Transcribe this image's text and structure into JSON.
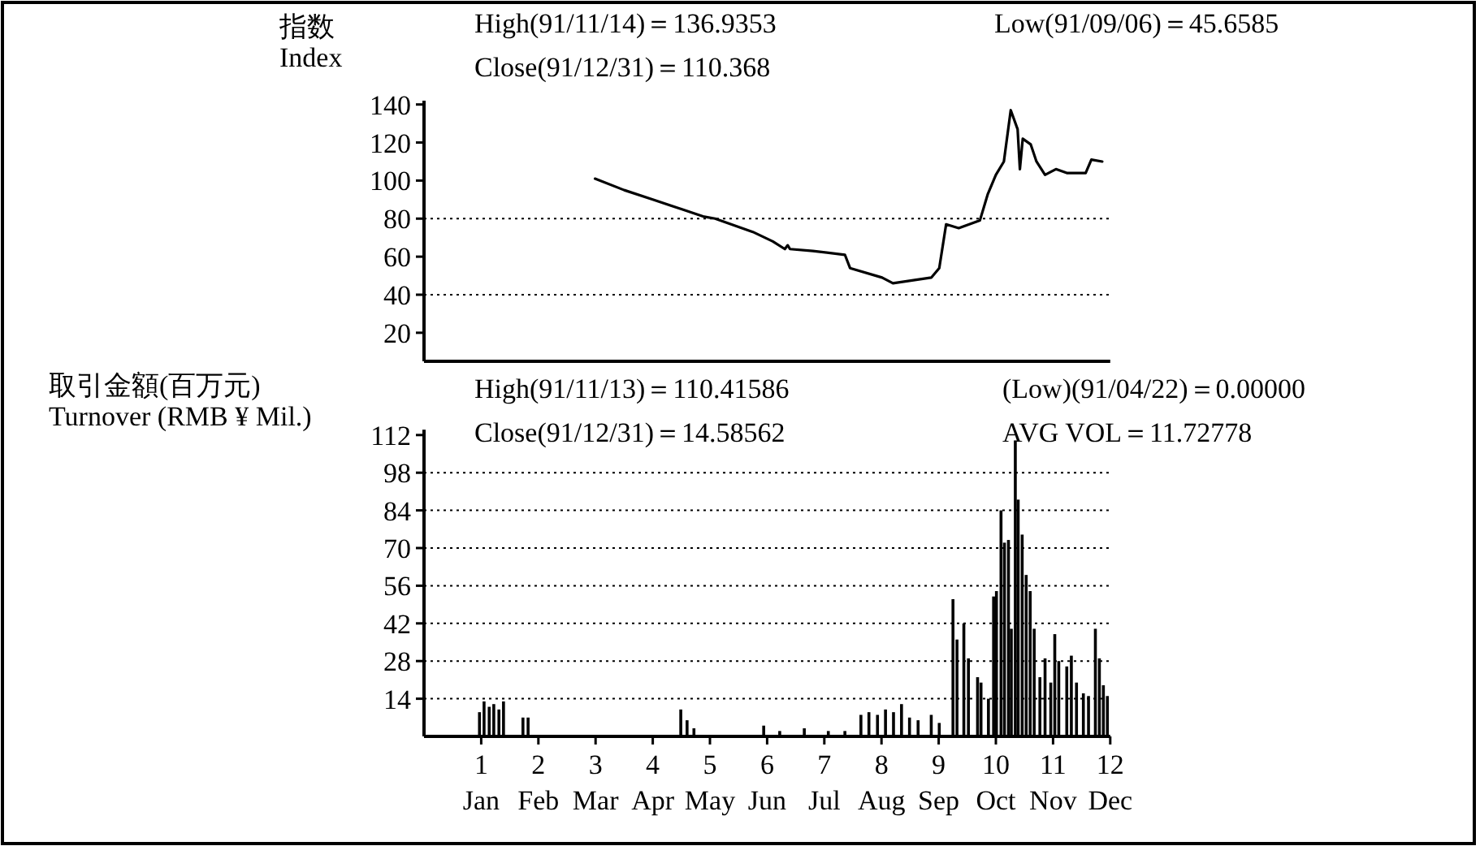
{
  "chart_data": [
    {
      "type": "line",
      "ylabel": "指数\nIndex",
      "annotations": [
        "High(91/11/14)＝136.9353",
        "Close(91/12/31)＝110.368",
        "Low(91/09/06)＝45.6585"
      ],
      "color": "#000000",
      "x": [
        2.99,
        3.5,
        4.0,
        4.5,
        4.9,
        5.09,
        5.65,
        5.75,
        6.1,
        6.31,
        6.36,
        6.4,
        6.8,
        7.36,
        7.45,
        8.01,
        8.2,
        8.87,
        9.01,
        9.13,
        9.35,
        9.72,
        9.86,
        10.0,
        10.14,
        10.26,
        10.38,
        10.42,
        10.47,
        10.61,
        10.71,
        10.86,
        11.05,
        11.24,
        11.57,
        11.67,
        11.86
      ],
      "values": [
        101,
        95,
        90,
        85,
        81,
        80,
        74,
        73,
        68,
        64,
        66,
        64,
        63,
        61,
        54,
        49,
        46,
        49,
        54,
        77,
        75,
        79,
        93,
        103,
        110,
        137,
        127,
        106,
        122,
        119,
        110,
        103,
        106,
        104,
        104,
        111,
        110
      ],
      "xlim": [
        0,
        12
      ],
      "ylim": [
        5,
        142
      ],
      "yticks": [
        20,
        40,
        60,
        80,
        100,
        120,
        140
      ],
      "tick_labels": "y",
      "ref_lines": [
        {
          "axis": "y",
          "value": 40,
          "line_style": "dotted"
        },
        {
          "axis": "y",
          "value": 80,
          "line_style": "dotted"
        }
      ]
    },
    {
      "type": "bar",
      "ylabel": "取引金額(百万元)\nTurnover (RMB ¥ Mil.)",
      "annotations": [
        "High(91/11/13)＝110.41586",
        "Close(91/12/31)＝14.58562",
        "(Low)(91/04/22)＝0.00000",
        "AVG VOL＝11.72778",
        "Jan",
        "Feb",
        "Mar",
        "Apr",
        "May",
        "Jun",
        "Jul",
        "Aug",
        "Sep",
        "Oct",
        "Nov",
        "Dec"
      ],
      "color": "#000000",
      "x": [
        0.97,
        1.05,
        1.14,
        1.22,
        1.31,
        1.39,
        1.73,
        1.82,
        4.49,
        4.6,
        4.72,
        5.94,
        6.22,
        6.65,
        7.07,
        7.36,
        7.64,
        7.78,
        7.93,
        8.07,
        8.21,
        8.35,
        8.49,
        8.64,
        8.87,
        9.01,
        9.25,
        9.32,
        9.44,
        9.52,
        9.68,
        9.74,
        9.87,
        9.96,
        10.01,
        10.09,
        10.15,
        10.22,
        10.27,
        10.34,
        10.39,
        10.46,
        10.53,
        10.6,
        10.67,
        10.77,
        10.86,
        10.96,
        11.03,
        11.1,
        11.24,
        11.32,
        11.41,
        11.53,
        11.62,
        11.74,
        11.81,
        11.88,
        11.95
      ],
      "values": [
        9,
        13,
        11,
        12,
        10,
        13,
        7,
        7,
        10,
        6,
        3,
        4,
        2,
        3,
        2,
        2,
        8,
        9,
        8,
        10,
        9,
        12,
        7,
        6,
        8,
        5,
        51,
        36,
        42,
        29,
        22,
        20,
        14,
        52,
        54,
        84,
        72,
        73,
        40,
        110,
        88,
        75,
        60,
        54,
        40,
        22,
        29,
        20,
        38,
        28,
        26,
        30,
        20,
        16,
        15,
        40,
        29,
        19,
        15
      ],
      "xlim": [
        0,
        12
      ],
      "ylim": [
        0,
        114
      ],
      "yticks": [
        14,
        28,
        42,
        56,
        70,
        84,
        98,
        112
      ],
      "xticks": [
        1,
        2,
        3,
        4,
        5,
        6,
        7,
        8,
        9,
        10,
        11,
        12
      ],
      "ref_lines": [
        {
          "axis": "y",
          "value": 14,
          "line_style": "dotted"
        },
        {
          "axis": "y",
          "value": 28,
          "line_style": "dotted"
        },
        {
          "axis": "y",
          "value": 42,
          "line_style": "dotted"
        },
        {
          "axis": "y",
          "value": 56,
          "line_style": "dotted"
        },
        {
          "axis": "y",
          "value": 70,
          "line_style": "dotted"
        },
        {
          "axis": "y",
          "value": 84,
          "line_style": "dotted"
        },
        {
          "axis": "y",
          "value": 98,
          "line_style": "dotted"
        }
      ]
    }
  ]
}
